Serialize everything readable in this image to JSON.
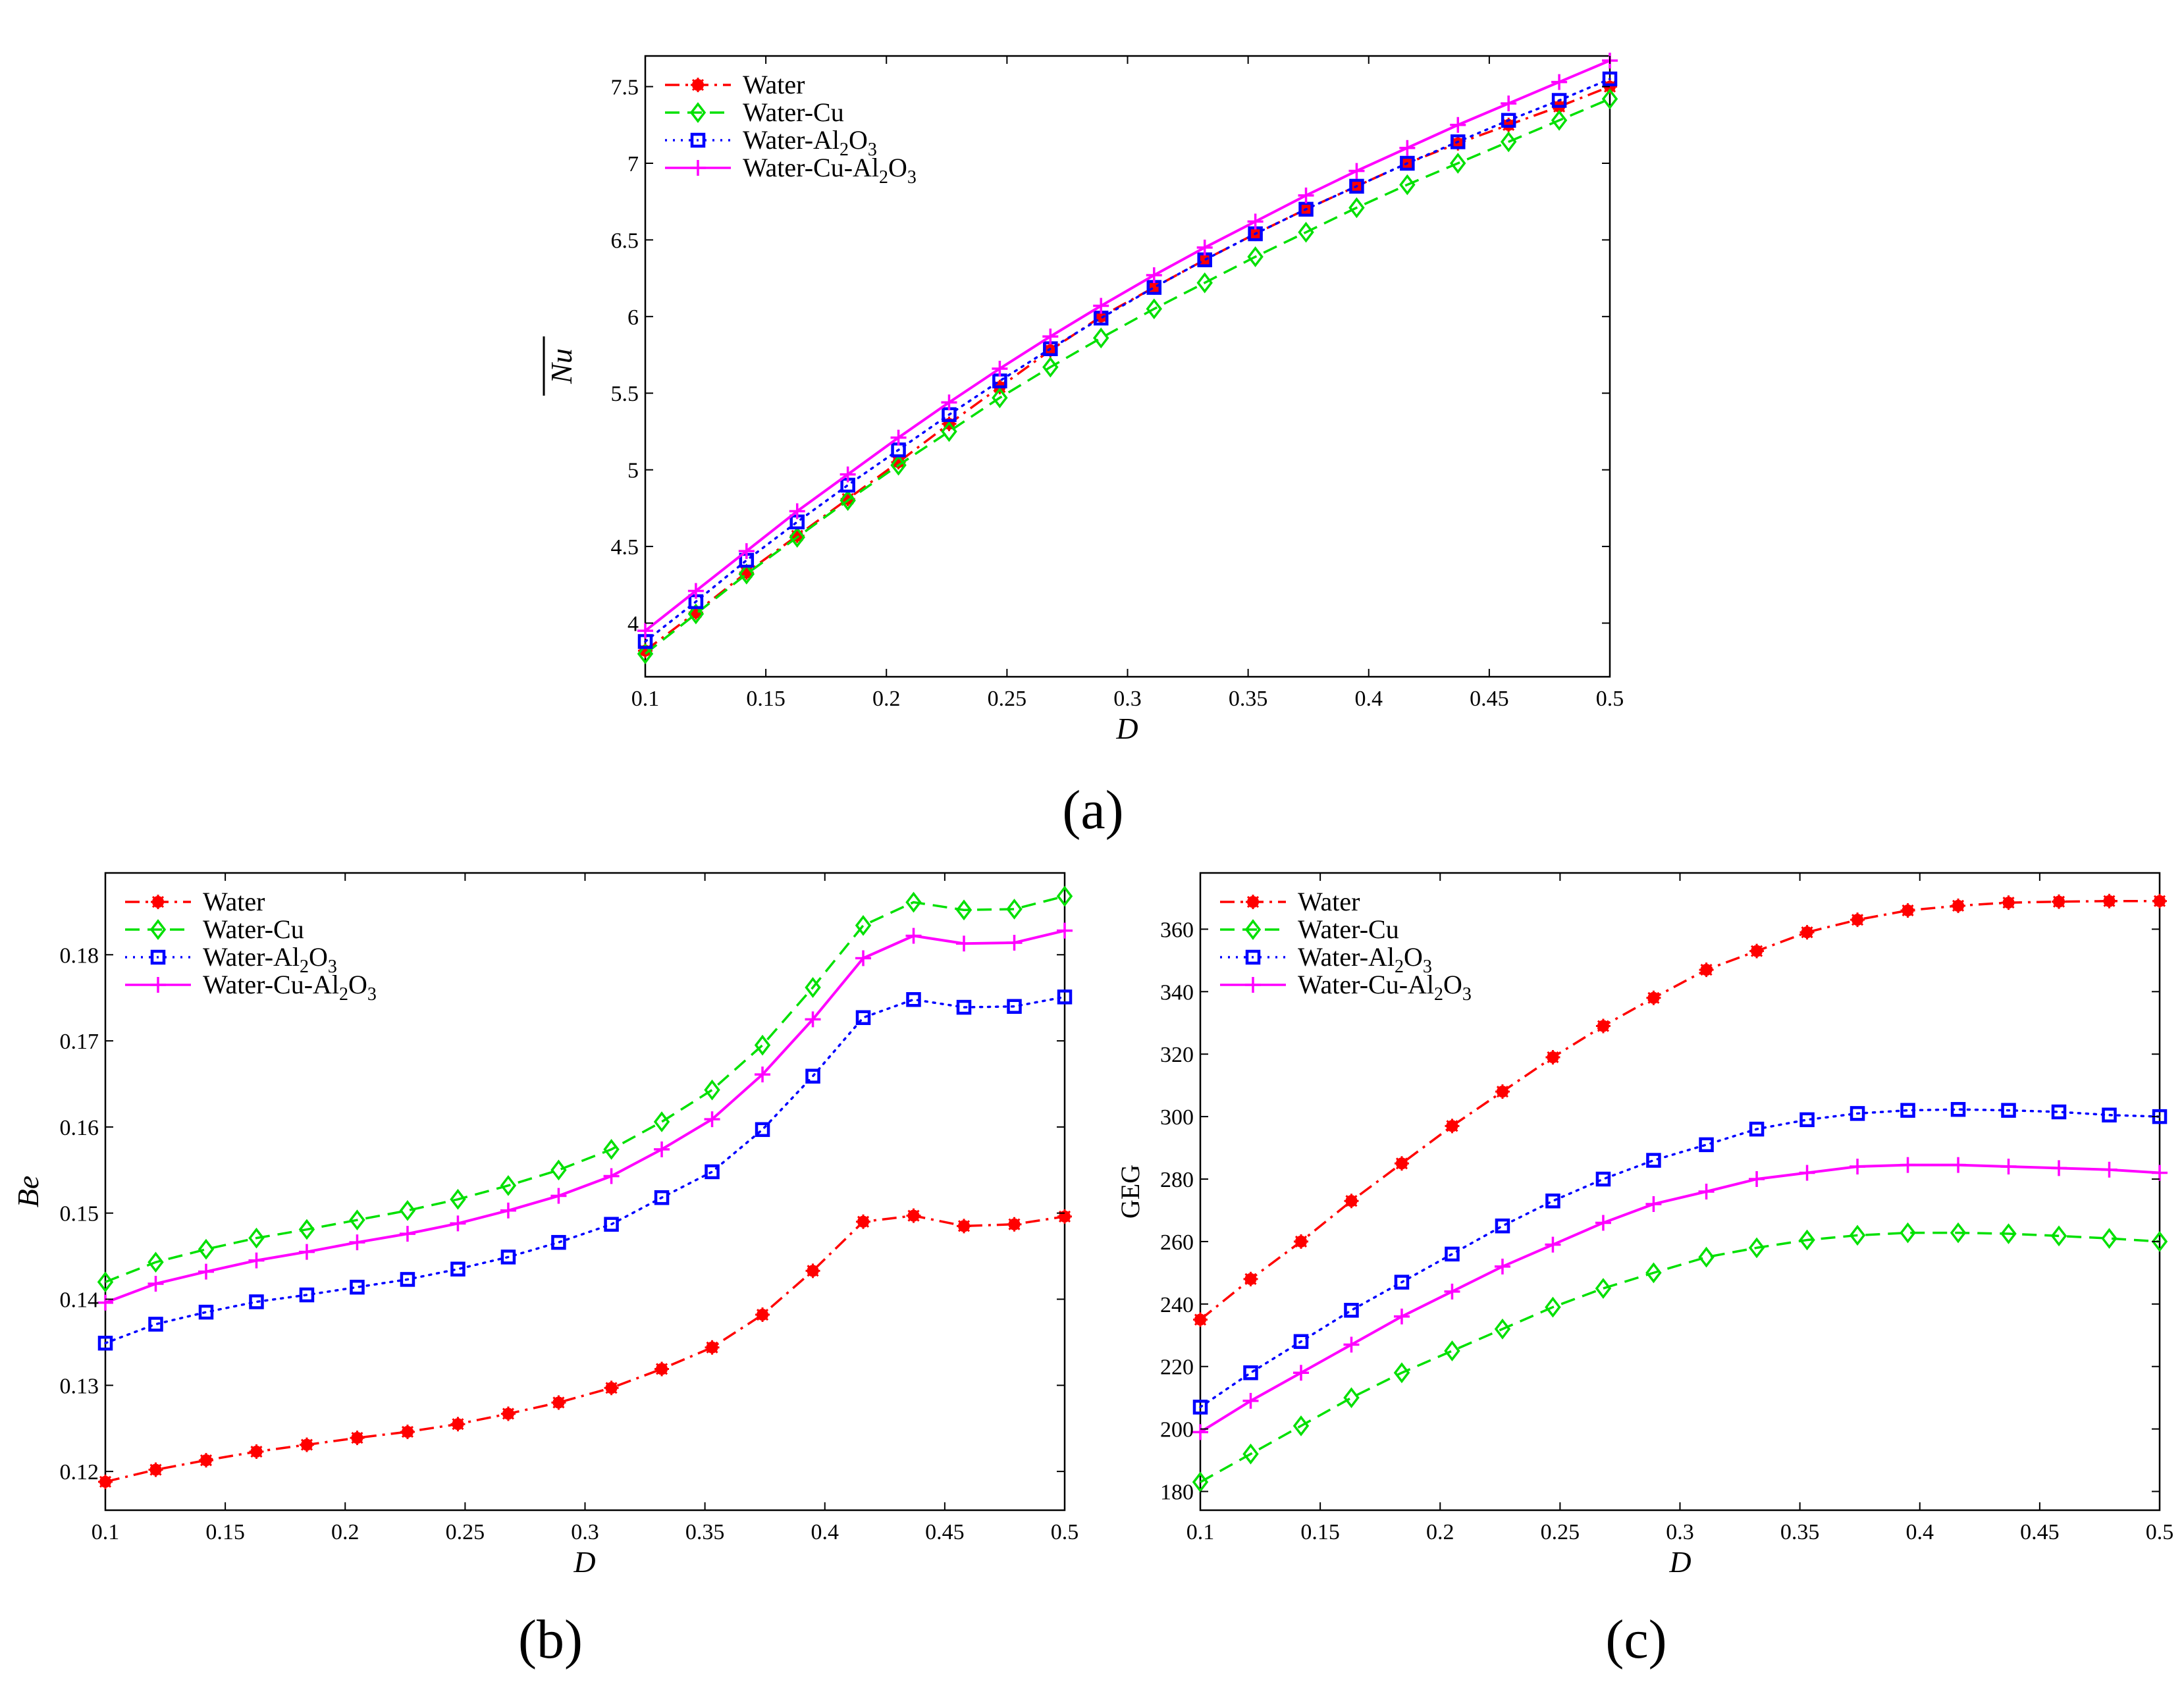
{
  "colors": {
    "water": "#ff0000",
    "water_cu": "#00e000",
    "water_al2o3": "#0000ff",
    "hybrid": "#ff00ff"
  },
  "chart_data": [
    {
      "panel_label": "(a)",
      "type": "line",
      "xlabel": "D",
      "ylabel": "Nu",
      "ylabel_overline": true,
      "xlim": [
        0.1,
        0.5
      ],
      "ylim": [
        3.65,
        7.7
      ],
      "xticks": [
        0.1,
        0.15,
        0.2,
        0.25,
        0.3,
        0.35,
        0.4,
        0.45,
        0.5
      ],
      "xtick_labels": [
        "0.1",
        "0.15",
        "0.2",
        "0.25",
        "0.3",
        "0.35",
        "0.4",
        "0.45",
        "0.5"
      ],
      "yticks": [
        4,
        4.5,
        5,
        5.5,
        6,
        6.5,
        7,
        7.5
      ],
      "ytick_labels": [
        "4",
        "4.5",
        "5",
        "5.5",
        "6",
        "6.5",
        "7",
        "7.5"
      ],
      "legend_position": "top-left",
      "x": [
        0.1,
        0.121,
        0.142,
        0.163,
        0.184,
        0.205,
        0.226,
        0.247,
        0.268,
        0.289,
        0.311,
        0.332,
        0.353,
        0.374,
        0.395,
        0.416,
        0.437,
        0.458,
        0.479,
        0.5
      ],
      "series": [
        {
          "name": "Water",
          "key": "water",
          "style": "dashdot",
          "marker": "star",
          "values": [
            3.82,
            4.07,
            4.33,
            4.57,
            4.81,
            5.05,
            5.3,
            5.54,
            5.78,
            6.0,
            6.19,
            6.37,
            6.54,
            6.7,
            6.85,
            7.0,
            7.13,
            7.25,
            7.37,
            7.5
          ]
        },
        {
          "name": "Water-Cu",
          "key": "water_cu",
          "style": "dashed",
          "marker": "diamond",
          "values": [
            3.8,
            4.06,
            4.32,
            4.56,
            4.8,
            5.03,
            5.25,
            5.47,
            5.67,
            5.86,
            6.05,
            6.22,
            6.39,
            6.55,
            6.71,
            6.86,
            7.0,
            7.14,
            7.28,
            7.42
          ]
        },
        {
          "name": "Water-Al2O3",
          "name_main": "Water-Al",
          "name_sub1": "2",
          "name_mid": "O",
          "name_sub2": "3",
          "key": "water_al2o3",
          "style": "dotted",
          "marker": "square",
          "values": [
            3.88,
            4.14,
            4.41,
            4.66,
            4.9,
            5.13,
            5.36,
            5.58,
            5.79,
            5.99,
            6.19,
            6.37,
            6.54,
            6.7,
            6.85,
            7.0,
            7.14,
            7.28,
            7.41,
            7.55
          ]
        },
        {
          "name": "Water-Cu-Al2O3",
          "name_main": "Water-Cu-Al",
          "name_sub1": "2",
          "name_mid": "O",
          "name_sub2": "3",
          "key": "hybrid",
          "style": "solid",
          "marker": "plus",
          "values": [
            3.95,
            4.21,
            4.47,
            4.73,
            4.97,
            5.21,
            5.44,
            5.66,
            5.87,
            6.07,
            6.27,
            6.45,
            6.62,
            6.79,
            6.95,
            7.1,
            7.25,
            7.39,
            7.53,
            7.67
          ]
        }
      ]
    },
    {
      "panel_label": "(b)",
      "type": "line",
      "xlabel": "D",
      "ylabel": "Be",
      "ylabel_overline": false,
      "xlim": [
        0.1,
        0.5
      ],
      "ylim": [
        0.1155,
        0.1895
      ],
      "xticks": [
        0.1,
        0.15,
        0.2,
        0.25,
        0.3,
        0.35,
        0.4,
        0.45,
        0.5
      ],
      "xtick_labels": [
        "0.1",
        "0.15",
        "0.2",
        "0.25",
        "0.3",
        "0.35",
        "0.4",
        "0.45",
        "0.5"
      ],
      "yticks": [
        0.12,
        0.13,
        0.14,
        0.15,
        0.16,
        0.17,
        0.18
      ],
      "ytick_labels": [
        "0.12",
        "0.13",
        "0.14",
        "0.15",
        "0.16",
        "0.17",
        "0.18"
      ],
      "legend_position": "top-left",
      "x": [
        0.1,
        0.121,
        0.142,
        0.163,
        0.184,
        0.205,
        0.226,
        0.247,
        0.268,
        0.289,
        0.311,
        0.332,
        0.353,
        0.374,
        0.395,
        0.416,
        0.437,
        0.458,
        0.479,
        0.5
      ],
      "series": [
        {
          "name": "Water",
          "key": "water",
          "style": "dashdot",
          "marker": "star",
          "values": [
            0.1188,
            0.1202,
            0.1213,
            0.1223,
            0.1231,
            0.1239,
            0.1246,
            0.1255,
            0.1267,
            0.128,
            0.1297,
            0.1319,
            0.1344,
            0.1382,
            0.1433,
            0.149,
            0.1497,
            0.1485,
            0.1487,
            0.1496
          ]
        },
        {
          "name": "Water-Cu",
          "key": "water_cu",
          "style": "dashed",
          "marker": "diamond",
          "values": [
            0.142,
            0.1443,
            0.1458,
            0.1471,
            0.1481,
            0.1492,
            0.1503,
            0.1516,
            0.1532,
            0.155,
            0.1574,
            0.1606,
            0.1643,
            0.1695,
            0.1762,
            0.1834,
            0.1861,
            0.1852,
            0.1853,
            0.1868
          ]
        },
        {
          "name": "Water-Al2O3",
          "name_main": "Water-Al",
          "name_sub1": "2",
          "name_mid": "O",
          "name_sub2": "3",
          "key": "water_al2o3",
          "style": "dotted",
          "marker": "square",
          "values": [
            0.1349,
            0.1371,
            0.1385,
            0.1397,
            0.1405,
            0.1414,
            0.1423,
            0.1435,
            0.1449,
            0.1466,
            0.1487,
            0.1518,
            0.1548,
            0.1597,
            0.1659,
            0.1727,
            0.1748,
            0.1739,
            0.174,
            0.1751
          ]
        },
        {
          "name": "Water-Cu-Al2O3",
          "name_main": "Water-Cu-Al",
          "name_sub1": "2",
          "name_mid": "O",
          "name_sub2": "3",
          "key": "hybrid",
          "style": "solid",
          "marker": "plus",
          "values": [
            0.1396,
            0.1418,
            0.1432,
            0.1445,
            0.1455,
            0.1466,
            0.1476,
            0.1488,
            0.1503,
            0.152,
            0.1543,
            0.1574,
            0.1609,
            0.1661,
            0.1725,
            0.1796,
            0.1822,
            0.1813,
            0.1814,
            0.1828
          ]
        }
      ]
    },
    {
      "panel_label": "(c)",
      "type": "line",
      "xlabel": "D",
      "ylabel": "GEG",
      "ylabel_overline": false,
      "xlim": [
        0.1,
        0.5
      ],
      "ylim": [
        174,
        378
      ],
      "xticks": [
        0.1,
        0.15,
        0.2,
        0.25,
        0.3,
        0.35,
        0.4,
        0.45,
        0.5
      ],
      "xtick_labels": [
        "0.1",
        "0.15",
        "0.2",
        "0.25",
        "0.3",
        "0.35",
        "0.4",
        "0.45",
        "0.5"
      ],
      "yticks": [
        180,
        200,
        220,
        240,
        260,
        280,
        300,
        320,
        340,
        360
      ],
      "ytick_labels": [
        "180",
        "200",
        "220",
        "240",
        "260",
        "280",
        "300",
        "320",
        "340",
        "360"
      ],
      "legend_position": "top-left",
      "x": [
        0.1,
        0.121,
        0.142,
        0.163,
        0.184,
        0.205,
        0.226,
        0.247,
        0.268,
        0.289,
        0.311,
        0.332,
        0.353,
        0.374,
        0.395,
        0.416,
        0.437,
        0.458,
        0.479,
        0.5
      ],
      "series": [
        {
          "name": "Water",
          "key": "water",
          "style": "dashdot",
          "marker": "star",
          "values": [
            235,
            248,
            260,
            273,
            285,
            297,
            308,
            319,
            329,
            338,
            347,
            353,
            359,
            363,
            366,
            367.5,
            368.5,
            368.8,
            369,
            369
          ]
        },
        {
          "name": "Water-Cu",
          "key": "water_cu",
          "style": "dashed",
          "marker": "diamond",
          "values": [
            183,
            192,
            201,
            210,
            218,
            225,
            232,
            239,
            245,
            250,
            255,
            258,
            260.5,
            262,
            262.8,
            262.8,
            262.5,
            261.8,
            261,
            260
          ]
        },
        {
          "name": "Water-Al2O3",
          "name_main": "Water-Al",
          "name_sub1": "2",
          "name_mid": "O",
          "name_sub2": "3",
          "key": "water_al2o3",
          "style": "dotted",
          "marker": "square",
          "values": [
            207,
            218,
            228,
            238,
            247,
            256,
            265,
            273,
            280,
            286,
            291,
            296,
            299,
            301,
            302,
            302.3,
            302,
            301.5,
            300.5,
            300
          ]
        },
        {
          "name": "Water-Cu-Al2O3",
          "name_main": "Water-Cu-Al",
          "name_sub1": "2",
          "name_mid": "O",
          "name_sub2": "3",
          "key": "hybrid",
          "style": "solid",
          "marker": "plus",
          "values": [
            199,
            209,
            218,
            227,
            236,
            244,
            252,
            259,
            266,
            272,
            276,
            280,
            282,
            284,
            284.5,
            284.5,
            284,
            283.5,
            283,
            282
          ]
        }
      ]
    }
  ]
}
